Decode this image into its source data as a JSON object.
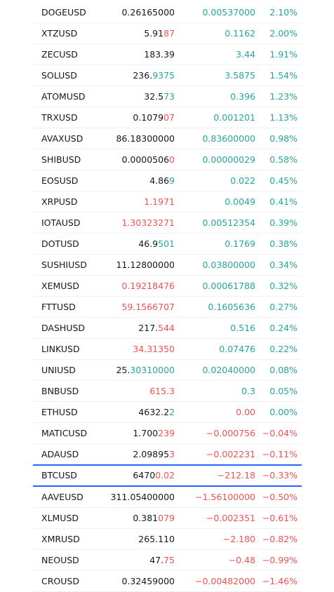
{
  "colors": {
    "up": "#26a69a",
    "down": "#ef5350",
    "text": "#131722",
    "selected_border": "#2962ff"
  },
  "selected_symbol": "BTCUSD",
  "rows": [
    {
      "symbol": "DOGEUSD",
      "last_base": "0.26165000",
      "last_tail": "",
      "last_tail_dir": "",
      "last_dir": "",
      "chg": "0.00537000",
      "chg_pct": "2.10%",
      "dir": "up"
    },
    {
      "symbol": "XTZUSD",
      "last_base": "5.91",
      "last_tail": "87",
      "last_tail_dir": "down",
      "last_dir": "",
      "chg": "0.1162",
      "chg_pct": "2.00%",
      "dir": "up"
    },
    {
      "symbol": "ZECUSD",
      "last_base": "183.39",
      "last_tail": "",
      "last_tail_dir": "",
      "last_dir": "",
      "chg": "3.44",
      "chg_pct": "1.91%",
      "dir": "up"
    },
    {
      "symbol": "SOLUSD",
      "last_base": "236.",
      "last_tail": "9375",
      "last_tail_dir": "up",
      "last_dir": "",
      "chg": "3.5875",
      "chg_pct": "1.54%",
      "dir": "up"
    },
    {
      "symbol": "ATOMUSD",
      "last_base": "32.5",
      "last_tail": "73",
      "last_tail_dir": "up",
      "last_dir": "",
      "chg": "0.396",
      "chg_pct": "1.23%",
      "dir": "up"
    },
    {
      "symbol": "TRXUSD",
      "last_base": "0.1079",
      "last_tail": "07",
      "last_tail_dir": "down",
      "last_dir": "",
      "chg": "0.001201",
      "chg_pct": "1.13%",
      "dir": "up"
    },
    {
      "symbol": "AVAXUSD",
      "last_base": "86.18300000",
      "last_tail": "",
      "last_tail_dir": "",
      "last_dir": "",
      "chg": "0.83600000",
      "chg_pct": "0.98%",
      "dir": "up"
    },
    {
      "symbol": "SHIBUSD",
      "last_base": "0.0000506",
      "last_tail": "0",
      "last_tail_dir": "down",
      "last_dir": "",
      "chg": "0.00000029",
      "chg_pct": "0.58%",
      "dir": "up"
    },
    {
      "symbol": "EOSUSD",
      "last_base": "4.86",
      "last_tail": "9",
      "last_tail_dir": "up",
      "last_dir": "",
      "chg": "0.022",
      "chg_pct": "0.45%",
      "dir": "up"
    },
    {
      "symbol": "XRPUSD",
      "last_base": "1.1971",
      "last_tail": "",
      "last_tail_dir": "",
      "last_dir": "down",
      "chg": "0.0049",
      "chg_pct": "0.41%",
      "dir": "up"
    },
    {
      "symbol": "IOTAUSD",
      "last_base": "1.30323271",
      "last_tail": "",
      "last_tail_dir": "",
      "last_dir": "down",
      "chg": "0.00512354",
      "chg_pct": "0.39%",
      "dir": "up"
    },
    {
      "symbol": "DOTUSD",
      "last_base": "46.9",
      "last_tail": "501",
      "last_tail_dir": "up",
      "last_dir": "",
      "chg": "0.1769",
      "chg_pct": "0.38%",
      "dir": "up"
    },
    {
      "symbol": "SUSHIUSD",
      "last_base": "11.12800000",
      "last_tail": "",
      "last_tail_dir": "",
      "last_dir": "",
      "chg": "0.03800000",
      "chg_pct": "0.34%",
      "dir": "up"
    },
    {
      "symbol": "XEMUSD",
      "last_base": "0.19218476",
      "last_tail": "",
      "last_tail_dir": "",
      "last_dir": "down",
      "chg": "0.00061788",
      "chg_pct": "0.32%",
      "dir": "up"
    },
    {
      "symbol": "FTTUSD",
      "last_base": "59.1566707",
      "last_tail": "",
      "last_tail_dir": "",
      "last_dir": "down",
      "chg": "0.1605636",
      "chg_pct": "0.27%",
      "dir": "up"
    },
    {
      "symbol": "DASHUSD",
      "last_base": "217.",
      "last_tail": "544",
      "last_tail_dir": "down",
      "last_dir": "",
      "chg": "0.516",
      "chg_pct": "0.24%",
      "dir": "up"
    },
    {
      "symbol": "LINKUSD",
      "last_base": "34.31350",
      "last_tail": "",
      "last_tail_dir": "",
      "last_dir": "down",
      "chg": "0.07476",
      "chg_pct": "0.22%",
      "dir": "up"
    },
    {
      "symbol": "UNIUSD",
      "last_base": "25.",
      "last_tail": "30310000",
      "last_tail_dir": "up",
      "last_dir": "",
      "chg": "0.02040000",
      "chg_pct": "0.08%",
      "dir": "up"
    },
    {
      "symbol": "BNBUSD",
      "last_base": "615.3",
      "last_tail": "",
      "last_tail_dir": "",
      "last_dir": "down",
      "chg": "0.3",
      "chg_pct": "0.05%",
      "dir": "up"
    },
    {
      "symbol": "ETHUSD",
      "last_base": "4632.2",
      "last_tail": "2",
      "last_tail_dir": "up",
      "last_dir": "",
      "chg": "0.00",
      "chg_pct": "0.00%",
      "dir": "mixed"
    },
    {
      "symbol": "MATICUSD",
      "last_base": "1.700",
      "last_tail": "239",
      "last_tail_dir": "down",
      "last_dir": "",
      "chg": "−0.000756",
      "chg_pct": "−0.04%",
      "dir": "down"
    },
    {
      "symbol": "ADAUSD",
      "last_base": "2.09895",
      "last_tail": "3",
      "last_tail_dir": "down",
      "last_dir": "",
      "chg": "−0.002231",
      "chg_pct": "−0.11%",
      "dir": "down"
    },
    {
      "symbol": "BTCUSD",
      "last_base": "6470",
      "last_tail": "0.02",
      "last_tail_dir": "down",
      "last_dir": "",
      "chg": "−212.18",
      "chg_pct": "−0.33%",
      "dir": "down"
    },
    {
      "symbol": "AAVEUSD",
      "last_base": "311.05400000",
      "last_tail": "",
      "last_tail_dir": "",
      "last_dir": "",
      "chg": "−1.56100000",
      "chg_pct": "−0.50%",
      "dir": "down"
    },
    {
      "symbol": "XLMUSD",
      "last_base": "0.381",
      "last_tail": "079",
      "last_tail_dir": "down",
      "last_dir": "",
      "chg": "−0.002351",
      "chg_pct": "−0.61%",
      "dir": "down"
    },
    {
      "symbol": "XMRUSD",
      "last_base": "265.110",
      "last_tail": "",
      "last_tail_dir": "",
      "last_dir": "",
      "chg": "−2.180",
      "chg_pct": "−0.82%",
      "dir": "down"
    },
    {
      "symbol": "NEOUSD",
      "last_base": "47.",
      "last_tail": "75",
      "last_tail_dir": "down",
      "last_dir": "",
      "chg": "−0.48",
      "chg_pct": "−0.99%",
      "dir": "down"
    },
    {
      "symbol": "CROUSD",
      "last_base": "0.32459000",
      "last_tail": "",
      "last_tail_dir": "",
      "last_dir": "",
      "chg": "−0.00482000",
      "chg_pct": "−1.46%",
      "dir": "down"
    }
  ]
}
